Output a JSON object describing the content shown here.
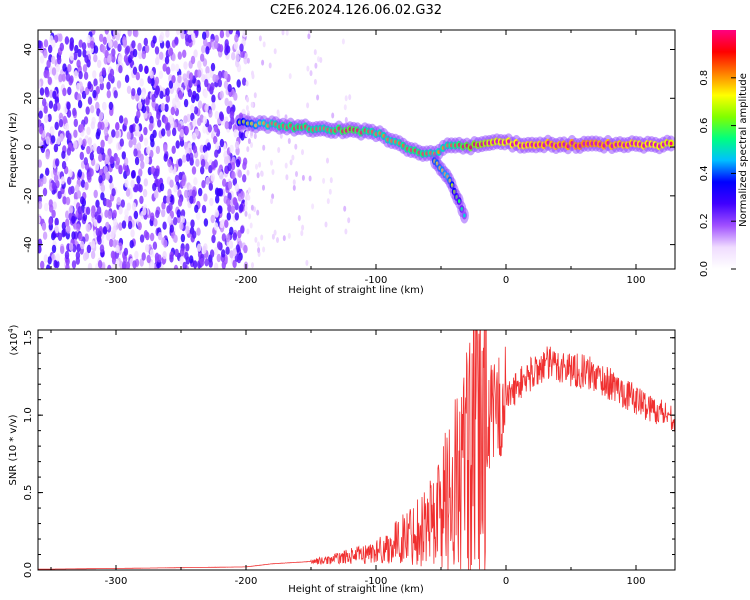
{
  "title": "C2E6.2024.126.06.02.G32",
  "chart_data": [
    {
      "type": "heatmap",
      "xlabel": "Height of straight line (km)",
      "ylabel": "Frequency (Hz)",
      "xlim": [
        -360,
        130
      ],
      "ylim": [
        -50,
        48
      ],
      "x_ticks": [
        -300,
        -200,
        -100,
        0,
        100
      ],
      "y_ticks": [
        -40,
        -20,
        0,
        20,
        40
      ],
      "colorbar": {
        "label": "Normalized spectral amplitude",
        "range": [
          0.0,
          1.0
        ],
        "ticks": [
          0.0,
          0.2,
          0.4,
          0.6,
          0.8
        ],
        "tick_labels": [
          "0.0",
          "0.2",
          "0.4",
          "0.6",
          "0.8"
        ],
        "colors": [
          "#ffffff",
          "#f0dcff",
          "#a050ff",
          "#4000ff",
          "#0000ff",
          "#00c0ff",
          "#00ff80",
          "#80ff00",
          "#ffff00",
          "#ff8000",
          "#ff0000",
          "#ff0080"
        ]
      },
      "noise_region_x": [
        -360,
        -200
      ],
      "signal_track": [
        {
          "x": -205,
          "y": 10,
          "amp": 0.35
        },
        {
          "x": -180,
          "y": 9,
          "amp": 0.5
        },
        {
          "x": -160,
          "y": 8,
          "amp": 0.55
        },
        {
          "x": -140,
          "y": 7,
          "amp": 0.5
        },
        {
          "x": -120,
          "y": 7,
          "amp": 0.6
        },
        {
          "x": -100,
          "y": 6,
          "amp": 0.5
        },
        {
          "x": -85,
          "y": 2,
          "amp": 0.5
        },
        {
          "x": -70,
          "y": -2,
          "amp": 0.55
        },
        {
          "x": -55,
          "y": -3,
          "amp": 0.5
        },
        {
          "x": -45,
          "y": 1,
          "amp": 0.5
        },
        {
          "x": -30,
          "y": 0,
          "amp": 0.6
        },
        {
          "x": -10,
          "y": 2,
          "amp": 0.7
        },
        {
          "x": 20,
          "y": 1,
          "amp": 0.75
        },
        {
          "x": 60,
          "y": 1,
          "amp": 0.8
        },
        {
          "x": 100,
          "y": 1,
          "amp": 0.75
        },
        {
          "x": 130,
          "y": 1,
          "amp": 0.7
        }
      ],
      "branch_track": [
        {
          "x": -55,
          "y": -6,
          "amp": 0.4
        },
        {
          "x": -45,
          "y": -12,
          "amp": 0.45
        },
        {
          "x": -38,
          "y": -20,
          "amp": 0.3
        },
        {
          "x": -30,
          "y": -30,
          "amp": 0.15
        }
      ]
    },
    {
      "type": "line",
      "xlabel": "Height of straight line (km)",
      "ylabel": "SNR (10 * v/v)",
      "y_multiplier": "(x10",
      "y_multiplier_exp": "4",
      "y_multiplier_close": ")",
      "xlim": [
        -360,
        130
      ],
      "ylim": [
        0.0,
        1.55
      ],
      "x_ticks": [
        -300,
        -200,
        -100,
        0,
        100
      ],
      "y_ticks": [
        0.0,
        0.5,
        1.0,
        1.5
      ],
      "y_tick_labels": [
        "0.0",
        "0.5",
        "1.0",
        "1.5"
      ],
      "line_color": "#f03030",
      "series": [
        {
          "x": [
            -360,
            -300,
            -250,
            -200,
            -180,
            -160,
            -140,
            -120,
            -110,
            -100,
            -90,
            -80,
            -70,
            -60,
            -50,
            -40,
            -35,
            -30,
            -25,
            -20,
            -15,
            -10,
            0,
            10,
            20,
            30,
            40,
            50,
            60,
            70,
            80,
            90,
            100,
            110,
            120,
            130
          ],
          "values": [
            0.005,
            0.01,
            0.015,
            0.02,
            0.04,
            0.05,
            0.06,
            0.09,
            0.1,
            0.12,
            0.15,
            0.2,
            0.25,
            0.3,
            0.4,
            0.55,
            0.6,
            0.7,
            0.75,
            0.85,
            0.95,
            1.0,
            1.1,
            1.2,
            1.27,
            1.33,
            1.32,
            1.3,
            1.28,
            1.25,
            1.2,
            1.15,
            1.1,
            1.05,
            1.02,
            0.98
          ]
        }
      ]
    }
  ]
}
